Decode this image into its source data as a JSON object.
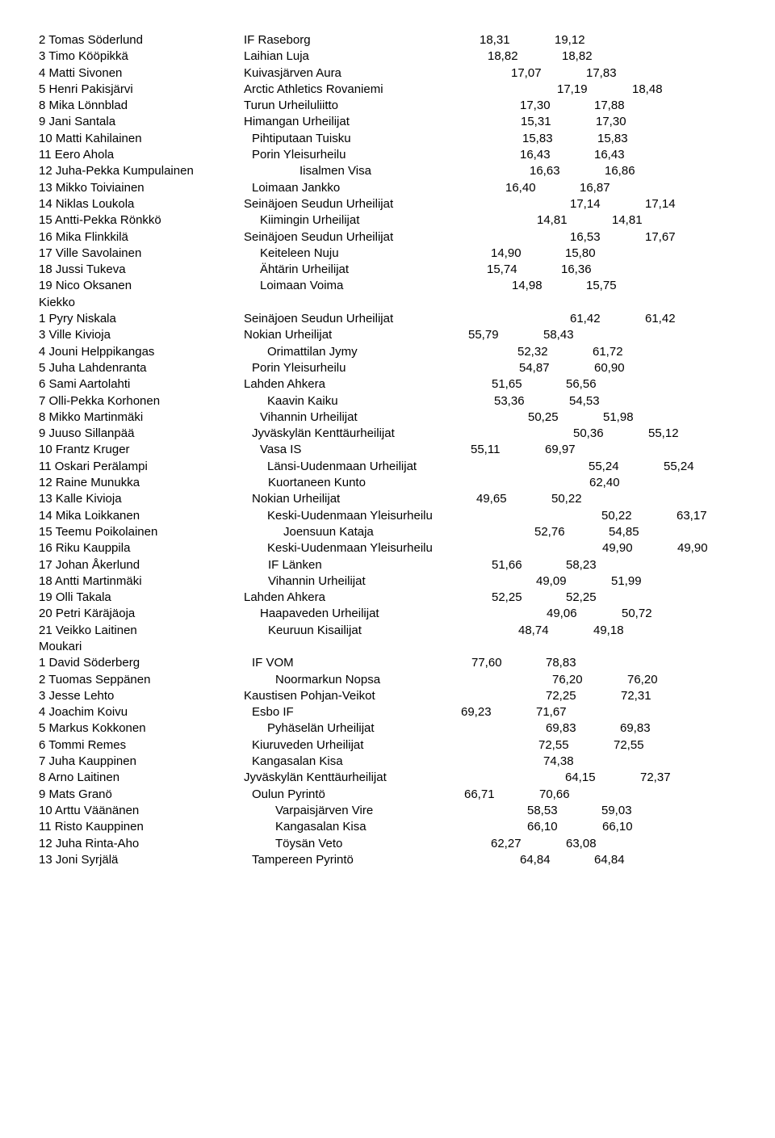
{
  "rows": [
    {
      "p": "2",
      "n": "Tomas Söderlund",
      "c": "IF Raseborg",
      "v1": "18,31",
      "v2": "19,12",
      "o1": 254,
      "o2": 546,
      "o3": 639
    },
    {
      "p": "3",
      "n": "Timo Kööpikkä",
      "c": "Laihian Luja",
      "v1": "18,82",
      "v2": "18,82",
      "o1": 254,
      "o2": 556,
      "o3": 648
    },
    {
      "p": "4",
      "n": "Matti Sivonen",
      "c": "Kuivasjärven Aura",
      "v1": "17,07",
      "v2": "17,83",
      "o1": 254,
      "o2": 585,
      "o3": 678
    },
    {
      "p": "5",
      "n": "Henri Pakisjärvi",
      "c": "Arctic Athletics Rovaniemi",
      "v1": "17,19",
      "v2": "18,48",
      "o1": 254,
      "o2": 642,
      "o3": 735
    },
    {
      "p": "8",
      "n": "Mika Lönnblad",
      "c": "Turun Urheiluliitto",
      "v1": "17,30",
      "v2": "17,88",
      "o1": 254,
      "o2": 596,
      "o3": 688
    },
    {
      "p": "9",
      "n": "Jani Santala",
      "c": "Himangan Urheilijat",
      "v1": "15,31",
      "v2": "17,30",
      "o1": 254,
      "o2": 597,
      "o3": 690
    },
    {
      "p": "10",
      "n": "Matti Kahilainen",
      "c": "Pihtiputaan Tuisku",
      "v1": "15,83",
      "v2": "15,83",
      "o1": 264,
      "o2": 599,
      "o3": 692
    },
    {
      "p": "11",
      "n": "Eero Ahola",
      "c": "Porin Yleisurheilu",
      "v1": "16,43",
      "v2": "16,43",
      "o1": 264,
      "o2": 596,
      "o3": 688
    },
    {
      "p": "12",
      "n": "Juha-Pekka Kumpulainen",
      "c": "Iisalmen Visa",
      "v1": "16,63",
      "v2": "16,86",
      "o1": 323,
      "o2": 608,
      "o3": 701
    },
    {
      "p": "13",
      "n": "Mikko Toiviainen",
      "c": "Loimaan Jankko",
      "v1": "16,40",
      "v2": "16,87",
      "o1": 264,
      "o2": 578,
      "o3": 670
    },
    {
      "p": "14",
      "n": "Niklas Loukola",
      "c": "Seinäjoen Seudun Urheilijat",
      "v1": "17,14",
      "v2": "17,14",
      "o1": 254,
      "o2": 658,
      "o3": 751
    },
    {
      "p": "15",
      "n": "Antti-Pekka Rönkkö",
      "c": "Kiimingin Urheilijat",
      "v1": "14,81",
      "v2": "14,81",
      "o1": 274,
      "o2": 617,
      "o3": 710
    },
    {
      "p": "16",
      "n": "Mika Flinkkilä",
      "c": "Seinäjoen Seudun Urheilijat",
      "v1": "16,53",
      "v2": "17,67",
      "o1": 254,
      "o2": 658,
      "o3": 751
    },
    {
      "p": "17",
      "n": "Ville Savolainen",
      "c": "Keiteleen Nuju",
      "v1": "14,90",
      "v2": "15,80",
      "o1": 274,
      "o2": 560,
      "o3": 652
    },
    {
      "p": "18",
      "n": "Jussi Tukeva",
      "c": "Ähtärin Urheilijat",
      "v1": "15,74",
      "v2": "16,36",
      "o1": 274,
      "o2": 555,
      "o3": 647
    },
    {
      "p": "19",
      "n": "Nico Oksanen",
      "c": "Loimaan Voima",
      "v1": "14,98",
      "v2": "15,75",
      "o1": 274,
      "o2": 586,
      "o3": 678
    },
    {
      "section": "Kiekko"
    },
    {
      "p": "1",
      "n": "Pyry Niskala",
      "c": "Seinäjoen Seudun Urheilijat",
      "v1": "61,42",
      "v2": "61,42",
      "o1": 254,
      "o2": 658,
      "o3": 751
    },
    {
      "p": "3",
      "n": "Ville Kivioja",
      "c": "Nokian Urheilijat",
      "v1": "55,79",
      "v2": "58,43",
      "o1": 254,
      "o2": 532,
      "o3": 625
    },
    {
      "p": "4",
      "n": "Jouni Helppikangas",
      "c": "Orimattilan Jymy",
      "v1": "52,32",
      "v2": "61,72",
      "o1": 283,
      "o2": 593,
      "o3": 686
    },
    {
      "p": "5",
      "n": "Juha Lahdenranta",
      "c": "Porin Yleisurheilu",
      "v1": "54,87",
      "v2": "60,90",
      "o1": 264,
      "o2": 595,
      "o3": 688
    },
    {
      "p": "6",
      "n": "Sami Aartolahti",
      "c": "Lahden Ahkera",
      "v1": "51,65",
      "v2": "56,56",
      "o1": 254,
      "o2": 561,
      "o3": 653
    },
    {
      "p": "7",
      "n": "Olli-Pekka Korhonen",
      "c": "Kaavin Kaiku",
      "v1": "53,36",
      "v2": "54,53",
      "o1": 283,
      "o2": 564,
      "o3": 657
    },
    {
      "p": "8",
      "n": "Mikko Martinmäki",
      "c": "Vihannin Urheilijat",
      "v1": "50,25",
      "v2": "51,98",
      "o1": 274,
      "o2": 606,
      "o3": 699
    },
    {
      "p": "9",
      "n": "Juuso Sillanpää",
      "c": "Jyväskylän Kenttäurheilijat",
      "v1": "50,36",
      "v2": "55,12",
      "o1": 264,
      "o2": 662,
      "o3": 755
    },
    {
      "p": "10",
      "n": "Frantz Kruger",
      "c": "Vasa IS",
      "v1": "55,11",
      "v2": "69,97",
      "o1": 274,
      "o2": 535,
      "o3": 627
    },
    {
      "p": "11",
      "n": "Oskari Perälampi",
      "c": "Länsi-Uudenmaan Urheilijat",
      "v1": "55,24",
      "v2": "55,24",
      "o1": 283,
      "o2": 681,
      "o3": 774
    },
    {
      "p": "12",
      "n": "Raine Munukka",
      "c": "Kuortaneen Kunto",
      "v1": "",
      "v2": "62,40",
      "o1": 284,
      "o2": 0,
      "o3": 682
    },
    {
      "p": "13",
      "n": "Kalle Kivioja",
      "c": "Nokian Urheilijat",
      "v1": "49,65",
      "v2": "50,22",
      "o1": 264,
      "o2": 542,
      "o3": 635
    },
    {
      "p": "14",
      "n": "Mika Loikkanen",
      "c": "Keski-Uudenmaan Yleisurheilu",
      "v1": "50,22",
      "v2": "63,17",
      "o1": 283,
      "o2": 697,
      "o3": 790
    },
    {
      "p": "15",
      "n": "Teemu Poikolainen",
      "c": "Joensuun Kataja",
      "v1": "52,76",
      "v2": "54,85",
      "o1": 303,
      "o2": 614,
      "o3": 706
    },
    {
      "p": "16",
      "n": "Riku Kauppila",
      "c": "Keski-Uudenmaan Yleisurheilu",
      "v1": "49,90",
      "v2": "49,90",
      "o1": 283,
      "o2": 698,
      "o3": 791
    },
    {
      "p": "17",
      "n": "Johan Åkerlund",
      "c": "IF Länken",
      "v1": "51,66",
      "v2": "58,23",
      "o1": 284,
      "o2": 561,
      "o3": 653
    },
    {
      "p": "18",
      "n": "Antti Martinmäki",
      "c": "Vihannin Urheilijat",
      "v1": "49,09",
      "v2": "51,99",
      "o1": 284,
      "o2": 616,
      "o3": 709
    },
    {
      "p": "19",
      "n": "Olli Takala",
      "c": "Lahden Ahkera",
      "v1": "52,25",
      "v2": "52,25",
      "o1": 254,
      "o2": 561,
      "o3": 653
    },
    {
      "p": "20",
      "n": "Petri Käräjäoja",
      "c": "Haapaveden Urheilijat",
      "v1": "49,06",
      "v2": "50,72",
      "o1": 274,
      "o2": 629,
      "o3": 722
    },
    {
      "p": "21",
      "n": "Veikko Laitinen",
      "c": "Keuruun Kisailijat",
      "v1": "48,74",
      "v2": "49,18",
      "o1": 284,
      "o2": 594,
      "o3": 687
    },
    {
      "section": "Moukari"
    },
    {
      "p": "1",
      "n": "David Söderberg",
      "c": "IF VOM",
      "v1": "77,60",
      "v2": "78,83",
      "o1": 264,
      "o2": 536,
      "o3": 628
    },
    {
      "p": "2",
      "n": "Tuomas Seppänen",
      "c": "Noormarkun Nopsa",
      "v1": "76,20",
      "v2": "76,20",
      "o1": 293,
      "o2": 636,
      "o3": 729
    },
    {
      "p": "3",
      "n": "Jesse Lehto",
      "c": "Kaustisen Pohjan-Veikot",
      "v1": "72,25",
      "v2": "72,31",
      "o1": 254,
      "o2": 628,
      "o3": 721
    },
    {
      "p": "4",
      "n": "Joachim Koivu",
      "c": "Esbo IF",
      "v1": "69,23",
      "v2": "71,67",
      "o1": 264,
      "o2": 523,
      "o3": 616
    },
    {
      "p": "5",
      "n": "Markus Kokkonen",
      "c": "Pyhäselän Urheilijat",
      "v1": "69,83",
      "v2": "69,83",
      "o1": 283,
      "o2": 628,
      "o3": 720
    },
    {
      "p": "6",
      "n": "Tommi Remes",
      "c": "Kiuruveden Urheilijat",
      "v1": "72,55",
      "v2": "72,55",
      "o1": 264,
      "o2": 619,
      "o3": 712
    },
    {
      "p": "7",
      "n": "Juha Kauppinen",
      "c": "Kangasalan Kisa",
      "v1": "",
      "v2": "74,38",
      "o1": 264,
      "o2": 0,
      "o3": 625
    },
    {
      "p": "8",
      "n": "Arno Laitinen",
      "c": "Jyväskylän Kenttäurheilijat",
      "v1": "64,15",
      "v2": "72,37",
      "o1": 254,
      "o2": 652,
      "o3": 745
    },
    {
      "p": "9",
      "n": "Mats Granö",
      "c": "Oulun Pyrintö",
      "v1": "66,71",
      "v2": "70,66",
      "o1": 264,
      "o2": 527,
      "o3": 620
    },
    {
      "p": "10",
      "n": "Arttu Väänänen",
      "c": "Varpaisjärven Vire",
      "v1": "58,53",
      "v2": "59,03",
      "o1": 293,
      "o2": 605,
      "o3": 697
    },
    {
      "p": "11",
      "n": "Risto Kauppinen",
      "c": "Kangasalan Kisa",
      "v1": "66,10",
      "v2": "66,10",
      "o1": 293,
      "o2": 605,
      "o3": 698
    },
    {
      "p": "12",
      "n": "Juha Rinta-Aho",
      "c": "Töysän Veto",
      "v1": "62,27",
      "v2": "63,08",
      "o1": 293,
      "o2": 560,
      "o3": 653
    },
    {
      "p": "13",
      "n": "Joni Syrjälä",
      "c": "Tampereen Pyrintö",
      "v1": "64,84",
      "v2": "64,84",
      "o1": 264,
      "o2": 596,
      "o3": 688
    }
  ]
}
